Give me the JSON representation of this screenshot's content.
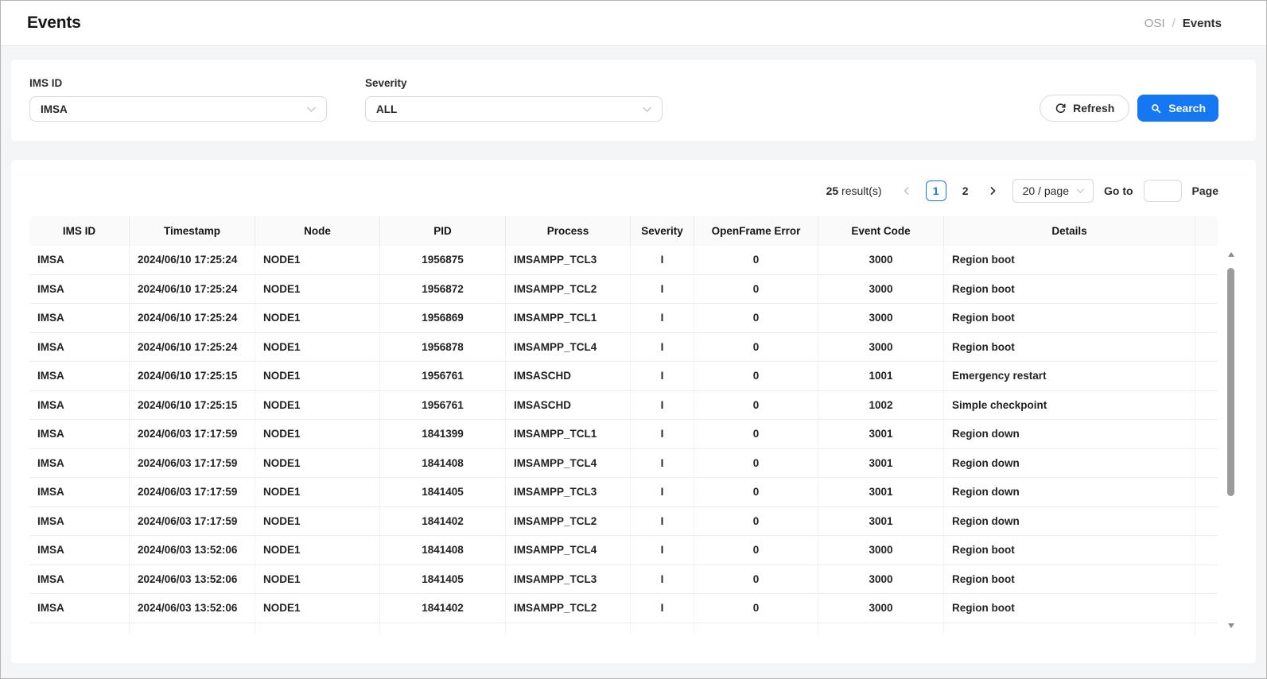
{
  "header": {
    "title": "Events",
    "breadcrumb": {
      "parent": "OSI",
      "separator": "/",
      "current": "Events"
    }
  },
  "filters": {
    "ims_id_label": "IMS ID",
    "ims_id_value": "IMSA",
    "severity_label": "Severity",
    "severity_value": "ALL",
    "refresh_label": "Refresh",
    "search_label": "Search"
  },
  "pagination": {
    "result_count": "25",
    "result_suffix": "result(s)",
    "pages": [
      "1",
      "2"
    ],
    "active_page": "1",
    "page_size_value": "20 / page",
    "goto_label": "Go to",
    "goto_value": "",
    "page_label": "Page"
  },
  "table": {
    "columns": [
      "IMS ID",
      "Timestamp",
      "Node",
      "PID",
      "Process",
      "Severity",
      "OpenFrame Error",
      "Event Code",
      "Details"
    ],
    "rows": [
      [
        "IMSA",
        "2024/06/10 17:25:24",
        "NODE1",
        "1956875",
        "IMSAMPP_TCL3",
        "I",
        "0",
        "3000",
        "Region boot"
      ],
      [
        "IMSA",
        "2024/06/10 17:25:24",
        "NODE1",
        "1956872",
        "IMSAMPP_TCL2",
        "I",
        "0",
        "3000",
        "Region boot"
      ],
      [
        "IMSA",
        "2024/06/10 17:25:24",
        "NODE1",
        "1956869",
        "IMSAMPP_TCL1",
        "I",
        "0",
        "3000",
        "Region boot"
      ],
      [
        "IMSA",
        "2024/06/10 17:25:24",
        "NODE1",
        "1956878",
        "IMSAMPP_TCL4",
        "I",
        "0",
        "3000",
        "Region boot"
      ],
      [
        "IMSA",
        "2024/06/10 17:25:15",
        "NODE1",
        "1956761",
        "IMSASCHD",
        "I",
        "0",
        "1001",
        "Emergency restart"
      ],
      [
        "IMSA",
        "2024/06/10 17:25:15",
        "NODE1",
        "1956761",
        "IMSASCHD",
        "I",
        "0",
        "1002",
        "Simple checkpoint"
      ],
      [
        "IMSA",
        "2024/06/03 17:17:59",
        "NODE1",
        "1841399",
        "IMSAMPP_TCL1",
        "I",
        "0",
        "3001",
        "Region down"
      ],
      [
        "IMSA",
        "2024/06/03 17:17:59",
        "NODE1",
        "1841408",
        "IMSAMPP_TCL4",
        "I",
        "0",
        "3001",
        "Region down"
      ],
      [
        "IMSA",
        "2024/06/03 17:17:59",
        "NODE1",
        "1841405",
        "IMSAMPP_TCL3",
        "I",
        "0",
        "3001",
        "Region down"
      ],
      [
        "IMSA",
        "2024/06/03 17:17:59",
        "NODE1",
        "1841402",
        "IMSAMPP_TCL2",
        "I",
        "0",
        "3001",
        "Region down"
      ],
      [
        "IMSA",
        "2024/06/03 13:52:06",
        "NODE1",
        "1841408",
        "IMSAMPP_TCL4",
        "I",
        "0",
        "3000",
        "Region boot"
      ],
      [
        "IMSA",
        "2024/06/03 13:52:06",
        "NODE1",
        "1841405",
        "IMSAMPP_TCL3",
        "I",
        "0",
        "3000",
        "Region boot"
      ],
      [
        "IMSA",
        "2024/06/03 13:52:06",
        "NODE1",
        "1841402",
        "IMSAMPP_TCL2",
        "I",
        "0",
        "3000",
        "Region boot"
      ]
    ]
  },
  "icons": {
    "search": "search-icon",
    "refresh": "refresh-icon",
    "chevron_down": "chevron-down-icon",
    "chevron_left": "chevron-left-icon",
    "chevron_right": "chevron-right-icon"
  },
  "colors": {
    "accent_blue": "#1677f2",
    "page_background": "#f4f5f6",
    "table_header_background": "#fafafa"
  }
}
